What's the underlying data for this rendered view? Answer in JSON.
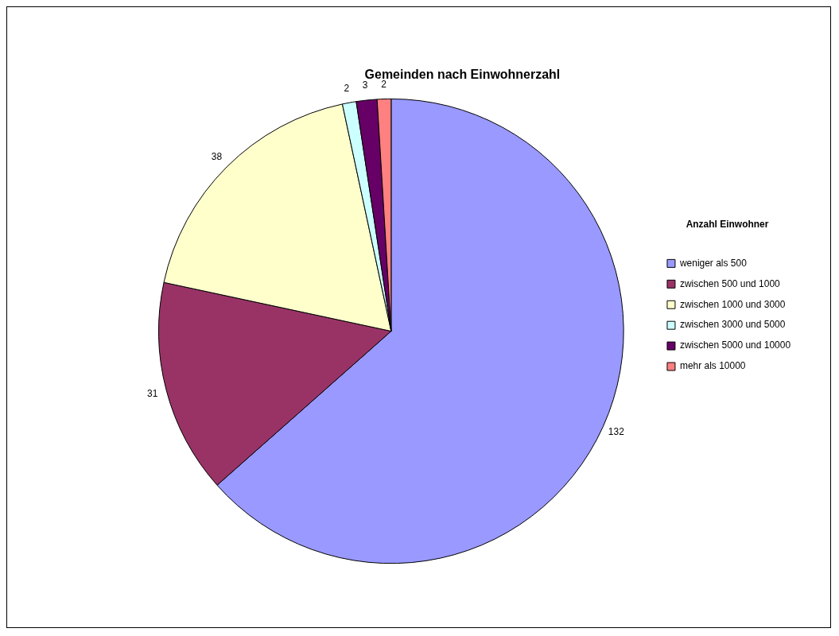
{
  "chart_data": {
    "type": "pie",
    "title": "Gemeinden nach Einwohnerzahl",
    "legend_title": "Anzahl Einwohner",
    "categories": [
      "weniger als 500",
      "zwischen 500 und 1000",
      "zwischen 1000 und 3000",
      "zwischen 3000 und 5000",
      "zwischen 5000 und 10000",
      "mehr als 10000"
    ],
    "values": [
      132,
      31,
      38,
      2,
      3,
      2
    ],
    "colors": [
      "#9999ff",
      "#993366",
      "#ffffcc",
      "#ccffff",
      "#660066",
      "#ff8080"
    ],
    "data_labels": true,
    "legend": "right"
  }
}
